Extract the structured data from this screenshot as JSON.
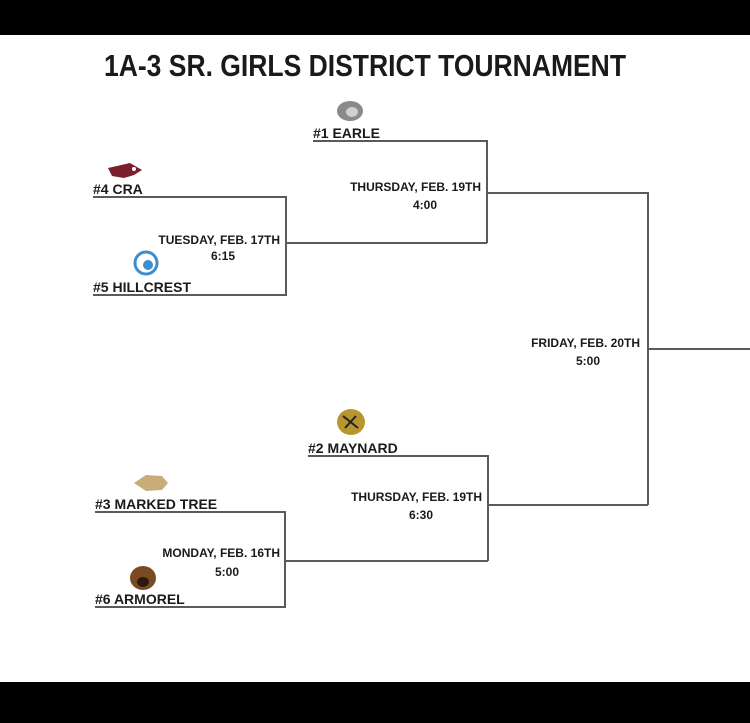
{
  "title": "1A-3 SR. GIRLS DISTRICT TOURNAMENT",
  "teams": [
    {
      "label": "#1 EARLE",
      "logo": "bulldog-logo",
      "color": "#8a8a8a"
    },
    {
      "label": "#4 CRA",
      "logo": "eagle-logo",
      "color": "#7a1f2b"
    },
    {
      "label": "#5 HILLCREST",
      "logo": "eagle-head-logo",
      "color": "#3b8fd0"
    },
    {
      "label": "#2 MAYNARD",
      "logo": "tiger-logo",
      "color": "#b8962e"
    },
    {
      "label": "#3 MARKED TREE",
      "logo": "arrowhead-logo",
      "color": "#c8ad78"
    },
    {
      "label": "#6 ARMOREL",
      "logo": "tiger-face-logo",
      "color": "#7a4a22"
    }
  ],
  "games": [
    {
      "day": "TUESDAY, FEB. 17TH",
      "time": "6:15"
    },
    {
      "day": "THURSDAY, FEB. 19TH",
      "time": "4:00"
    },
    {
      "day": "MONDAY, FEB. 16TH",
      "time": "5:00"
    },
    {
      "day": "THURSDAY, FEB. 19TH",
      "time": "6:30"
    },
    {
      "day": "FRIDAY, FEB. 20TH",
      "time": "5:00"
    }
  ]
}
